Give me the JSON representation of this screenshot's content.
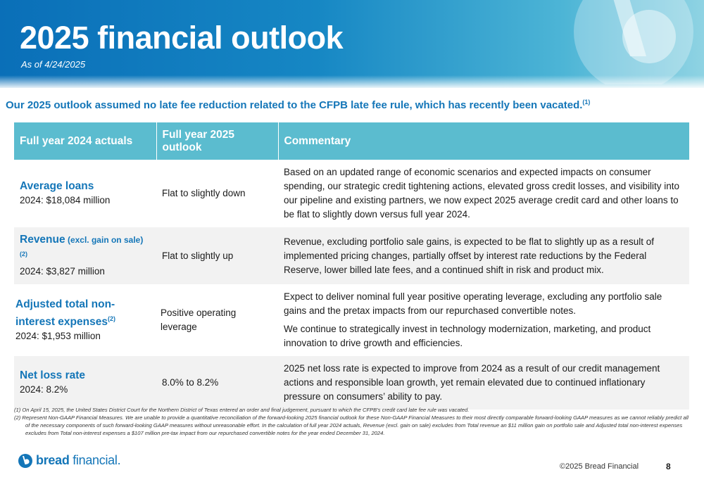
{
  "header": {
    "title": "2025 financial outlook",
    "as_of": "As of 4/24/2025"
  },
  "intro": {
    "text": "Our 2025 outlook assumed no late fee reduction related to the CFPB late fee rule, which has recently been vacated.",
    "footnote_ref": "(1)"
  },
  "table": {
    "headers": [
      "Full year 2024 actuals",
      "Full year 2025 outlook",
      "Commentary"
    ],
    "rows": [
      {
        "metric": "Average loans",
        "metric_suffix": "",
        "metric_footnote": "",
        "actual_2024": "2024: $18,084 million",
        "outlook": "Flat to slightly down",
        "commentary": [
          "Based on an updated range of economic scenarios and expected impacts on consumer spending, our strategic credit tightening actions, elevated gross credit losses, and visibility into our pipeline and existing partners, we now expect 2025 average credit card and other loans to be flat to slightly down versus full year 2024."
        ]
      },
      {
        "metric": "Revenue",
        "metric_suffix": " (excl. gain on sale)",
        "metric_footnote": "(2)",
        "actual_2024": "2024: $3,827 million",
        "outlook": "Flat to slightly up",
        "commentary": [
          "Revenue, excluding portfolio sale gains, is expected to be flat to slightly up as a result of implemented pricing changes, partially offset by interest rate reductions by the Federal Reserve, lower billed late fees, and a continued shift in risk and product mix."
        ]
      },
      {
        "metric": "Adjusted total non-interest expenses",
        "metric_suffix": "",
        "metric_footnote": "(2)",
        "actual_2024": "2024: $1,953 million",
        "outlook": "Positive operating leverage",
        "commentary": [
          "Expect to deliver nominal full year positive operating leverage, excluding any portfolio sale gains and the pretax impacts from our repurchased convertible notes.",
          "We continue to strategically invest in technology modernization, marketing, and product innovation to drive growth and efficiencies."
        ]
      },
      {
        "metric": "Net loss rate",
        "metric_suffix": "",
        "metric_footnote": "",
        "actual_2024": "2024: 8.2%",
        "outlook": "8.0% to 8.2%",
        "commentary": [
          "2025 net loss rate is expected to improve from 2024 as a result of our credit management actions and responsible loan growth, yet remain elevated due to continued inflationary pressure on consumers’ ability to pay."
        ]
      }
    ]
  },
  "footnotes": [
    "(1) On April 15, 2025, the United States District Court for the Northern District of Texas entered an order and final judgement, pursuant to which the CFPB’s credit card late fee rule was vacated.",
    "(2) Represent Non-GAAP Financial Measures.  We are unable to provide a quantitative reconciliation of the forward-looking 2025 financial outlook for these Non-GAAP Financial Measures to their most directly comparable forward-looking GAAP measures as we cannot reliably predict all of the necessary components of such forward-looking GAAP measures without unreasonable effort. In the calculation of full year 2024 actuals, Revenue (excl. gain on sale) excludes from Total revenue an $11 million gain on portfolio sale and Adjusted total non-interest expenses excludes from Total non-interest expenses a $107 million pre-tax impact from our repurchased convertible notes for the year ended December 31, 2024."
  ],
  "footer": {
    "brand_bold": "bread",
    "brand_rest": " financial",
    "brand_mark": ".",
    "copyright": "©2025 Bread Financial",
    "page_number": "8"
  },
  "colors": {
    "header_blue": "#0a6fb8",
    "accent_blue": "#1476b8",
    "table_header_teal": "#5bbccf",
    "row_stripe": "#f2f2f2"
  }
}
